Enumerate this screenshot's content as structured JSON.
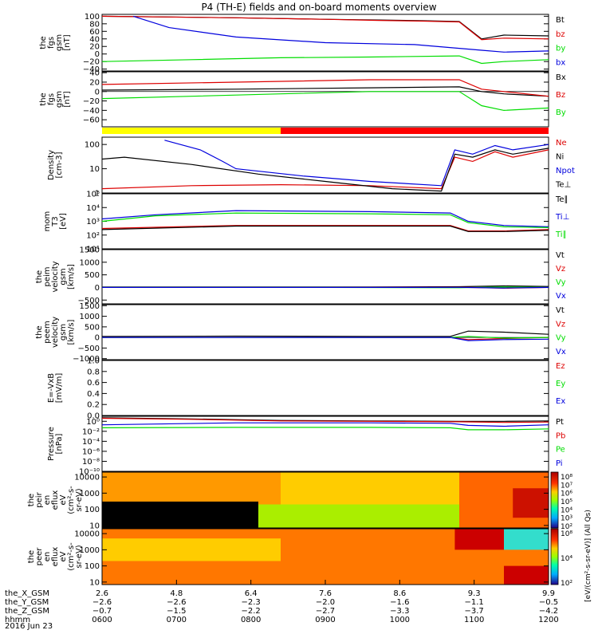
{
  "title": "P4 (TH-E) fields and on-board moments overview",
  "date_label": "2016 Jun 23",
  "colors": {
    "black": "#000000",
    "red": "#dd0000",
    "green": "#00dd00",
    "blue": "#0000dd",
    "yellow": "#ffff00",
    "bar_red": "#ff0000"
  },
  "chart_data": [
    {
      "type": "line",
      "id": "fgs-gsm-bt",
      "ylabel": [
        "the",
        "fgs",
        "gsm",
        "[nT]"
      ],
      "ylim": [
        -45,
        105
      ],
      "y_ticks": [
        100,
        80,
        60,
        40,
        20,
        0,
        -20,
        -40
      ],
      "y_tick_labels": [
        "100",
        "80",
        "60",
        "40",
        "20",
        "0",
        "−20",
        "−40"
      ],
      "series": [
        {
          "name": "Bt",
          "color": "#000000",
          "x": [
            0,
            0.3,
            0.5,
            0.62,
            0.72,
            0.8,
            0.85,
            0.9,
            1.0
          ],
          "y": [
            100,
            96,
            92,
            90,
            88,
            86,
            40,
            50,
            48
          ]
        },
        {
          "name": "bz",
          "color": "#dd0000",
          "x": [
            0,
            0.3,
            0.5,
            0.62,
            0.72,
            0.8,
            0.85,
            0.9,
            1.0
          ],
          "y": [
            100,
            96,
            92,
            89,
            87,
            85,
            38,
            42,
            40
          ]
        },
        {
          "name": "by",
          "color": "#00dd00",
          "x": [
            0,
            0.2,
            0.4,
            0.6,
            0.8,
            0.85,
            0.9,
            1.0
          ],
          "y": [
            -20,
            -15,
            -10,
            -8,
            -5,
            -25,
            -20,
            -15
          ]
        },
        {
          "name": "bx",
          "color": "#0000dd",
          "x": [
            0.07,
            0.15,
            0.3,
            0.5,
            0.7,
            0.85,
            0.9,
            1.0
          ],
          "y": [
            100,
            70,
            45,
            30,
            25,
            10,
            5,
            8
          ]
        }
      ]
    },
    {
      "type": "line",
      "id": "fgs-gsm-bxyz",
      "ylabel": [
        "the",
        "fgs",
        "gsm",
        "[nT]"
      ],
      "ylim": [
        -75,
        42
      ],
      "y_ticks": [
        40,
        20,
        0,
        -20,
        -40,
        -60
      ],
      "y_tick_labels": [
        "40",
        "20",
        "0",
        "−20",
        "−40",
        "−60"
      ],
      "series": [
        {
          "name": "Bx",
          "color": "#000000",
          "x": [
            0,
            0.3,
            0.6,
            0.8,
            0.85,
            0.9,
            1.0
          ],
          "y": [
            3,
            5,
            8,
            10,
            0,
            -5,
            -10
          ]
        },
        {
          "name": "Bz",
          "color": "#dd0000",
          "x": [
            0,
            0.3,
            0.6,
            0.8,
            0.85,
            0.9,
            1.0
          ],
          "y": [
            15,
            20,
            25,
            25,
            5,
            0,
            -10
          ]
        },
        {
          "name": "By",
          "color": "#00dd00",
          "x": [
            0,
            0.2,
            0.4,
            0.6,
            0.8,
            0.85,
            0.9,
            1.0
          ],
          "y": [
            -15,
            -10,
            -5,
            0,
            0,
            -30,
            -40,
            -35
          ]
        }
      ]
    },
    {
      "type": "bar",
      "id": "region-bar",
      "segments": [
        {
          "x0": 0,
          "x1": 0.4,
          "color": "#ffff00"
        },
        {
          "x0": 0.4,
          "x1": 1.0,
          "color": "#ff0000"
        }
      ]
    },
    {
      "type": "line",
      "id": "density",
      "yscale": "log",
      "ylabel": [
        "Density",
        "[cm-3]"
      ],
      "ylim": [
        1,
        200
      ],
      "y_ticks": [
        100,
        10,
        1
      ],
      "y_tick_labels": [
        "100",
        "10",
        "1"
      ],
      "series": [
        {
          "name": "Ne",
          "color": "#dd0000",
          "x": [
            0,
            0.2,
            0.4,
            0.6,
            0.76,
            0.79,
            0.83,
            0.88,
            0.92,
            1.0
          ],
          "y": [
            1.5,
            2,
            2.2,
            2,
            1.5,
            30,
            20,
            50,
            30,
            60
          ]
        },
        {
          "name": "Ni",
          "color": "#000000",
          "x": [
            0,
            0.05,
            0.2,
            0.35,
            0.5,
            0.65,
            0.76,
            0.79,
            0.83,
            0.88,
            0.92,
            1.0
          ],
          "y": [
            25,
            30,
            15,
            6,
            3,
            1.5,
            1.2,
            40,
            30,
            60,
            40,
            70
          ]
        },
        {
          "name": "Npot",
          "color": "#0000dd",
          "x": [
            0.14,
            0.22,
            0.27,
            0.3,
            0.45,
            0.6,
            0.76,
            0.79,
            0.83,
            0.88,
            0.92,
            1.0
          ],
          "y": [
            150,
            60,
            20,
            10,
            5,
            3,
            2,
            60,
            40,
            90,
            60,
            100
          ]
        }
      ]
    },
    {
      "type": "line",
      "id": "temperature",
      "yscale": "log",
      "ylabel": [
        "mom",
        "T3",
        "[eV]"
      ],
      "ylim": [
        10,
        100000
      ],
      "y_ticks": [
        100000,
        10000,
        1000,
        100,
        10
      ],
      "y_tick_labels": [
        "10⁵",
        "10⁴",
        "10³",
        "10²",
        "10¹"
      ],
      "series": [
        {
          "name": "Te⊥",
          "color": "#dd0000",
          "x": [
            0,
            0.3,
            0.6,
            0.78,
            0.82,
            0.9,
            1.0
          ],
          "y": [
            300,
            500,
            500,
            500,
            200,
            200,
            250
          ]
        },
        {
          "name": "Te∥",
          "color": "#000000",
          "x": [
            0,
            0.3,
            0.6,
            0.78,
            0.82,
            0.9,
            1.0
          ],
          "y": [
            250,
            450,
            450,
            450,
            180,
            180,
            220
          ]
        },
        {
          "name": "Ti⊥",
          "color": "#0000dd",
          "x": [
            0,
            0.12,
            0.3,
            0.6,
            0.78,
            0.82,
            0.9,
            1.0
          ],
          "y": [
            1500,
            3000,
            6000,
            5000,
            4000,
            1000,
            500,
            400
          ]
        },
        {
          "name": "Ti∥",
          "color": "#00dd00",
          "x": [
            0,
            0.12,
            0.3,
            0.6,
            0.78,
            0.82,
            0.9,
            1.0
          ],
          "y": [
            1000,
            2500,
            4000,
            3500,
            3000,
            800,
            400,
            350
          ]
        }
      ]
    },
    {
      "type": "line",
      "id": "peim-velocity",
      "ylabel": [
        "the",
        "peim",
        "velocity",
        "gsm",
        "[km/s]"
      ],
      "ylim": [
        -650,
        1500
      ],
      "y_ticks": [
        1500,
        1000,
        500,
        0,
        -500
      ],
      "y_tick_labels": [
        "1500",
        "1000",
        "500",
        "0",
        "−500"
      ],
      "series": [
        {
          "name": "Vt",
          "color": "#000000",
          "x": [
            0,
            0.3,
            0.6,
            0.8,
            0.9,
            1.0
          ],
          "y": [
            20,
            20,
            20,
            30,
            60,
            40
          ]
        },
        {
          "name": "Vz",
          "color": "#dd0000",
          "x": [
            0,
            0.5,
            0.8,
            0.9,
            1.0
          ],
          "y": [
            0,
            0,
            10,
            -30,
            0
          ]
        },
        {
          "name": "Vy",
          "color": "#00dd00",
          "x": [
            0,
            0.5,
            0.8,
            0.9,
            1.0
          ],
          "y": [
            0,
            0,
            -10,
            20,
            0
          ]
        },
        {
          "name": "Vx",
          "color": "#0000dd",
          "x": [
            0,
            0.5,
            0.8,
            0.9,
            1.0
          ],
          "y": [
            0,
            0,
            5,
            -20,
            0
          ]
        }
      ]
    },
    {
      "type": "line",
      "id": "peem-velocity",
      "ylabel": [
        "the",
        "peem",
        "velocity",
        "gsm",
        "[km/s]"
      ],
      "ylim": [
        -1050,
        1550
      ],
      "y_ticks": [
        1500,
        1000,
        500,
        0,
        -500,
        -1000
      ],
      "y_tick_labels": [
        "1500",
        "1000",
        "500",
        "0",
        "−500",
        "−1000"
      ],
      "series": [
        {
          "name": "Vt",
          "color": "#000000",
          "x": [
            0,
            0.3,
            0.6,
            0.78,
            0.82,
            0.9,
            1.0
          ],
          "y": [
            50,
            60,
            50,
            50,
            300,
            250,
            150
          ]
        },
        {
          "name": "Vz",
          "color": "#dd0000",
          "x": [
            0,
            0.5,
            0.78,
            0.82,
            0.9,
            1.0
          ],
          "y": [
            0,
            0,
            0,
            -100,
            -50,
            0
          ]
        },
        {
          "name": "Vy",
          "color": "#00dd00",
          "x": [
            0,
            0.5,
            0.78,
            0.82,
            0.9,
            1.0
          ],
          "y": [
            0,
            0,
            0,
            50,
            -30,
            0
          ]
        },
        {
          "name": "Vx",
          "color": "#0000dd",
          "x": [
            0,
            0.5,
            0.78,
            0.82,
            0.9,
            1.0
          ],
          "y": [
            0,
            0,
            0,
            -150,
            -100,
            -80
          ]
        }
      ]
    },
    {
      "type": "line",
      "id": "efield",
      "ylabel": [
        "E=-VxB",
        "[mV/m]"
      ],
      "ylim": [
        0,
        1
      ],
      "y_ticks": [
        1.0,
        0.8,
        0.6,
        0.4,
        0.2,
        0.0
      ],
      "y_tick_labels": [
        "1.0",
        "0.8",
        "0.6",
        "0.4",
        "0.2",
        "0.0"
      ],
      "series": [
        {
          "name": "Ez",
          "color": "#dd0000",
          "x": [],
          "y": []
        },
        {
          "name": "Ey",
          "color": "#00dd00",
          "x": [],
          "y": []
        },
        {
          "name": "Ex",
          "color": "#0000dd",
          "x": [],
          "y": []
        }
      ]
    },
    {
      "type": "line",
      "id": "pressure",
      "yscale": "log",
      "ylabel": [
        "Pressure",
        "[nPa]"
      ],
      "ylim": [
        1e-10,
        10
      ],
      "y_ticks": [
        1,
        0.01,
        0.0001,
        1e-06,
        1e-08,
        1e-10
      ],
      "y_tick_labels": [
        "10⁰",
        "10⁻²",
        "10⁻⁴",
        "10⁻⁶",
        "10⁻⁸",
        "10⁻¹⁰"
      ],
      "series": [
        {
          "name": "Pt",
          "color": "#000000",
          "x": [
            0,
            0.2,
            0.4,
            0.6,
            0.8,
            0.9,
            1.0
          ],
          "y": [
            5,
            3,
            1.5,
            1.2,
            1,
            1,
            1.2
          ]
        },
        {
          "name": "Pb",
          "color": "#dd0000",
          "x": [
            0,
            0.2,
            0.4,
            0.6,
            0.8,
            0.9,
            1.0
          ],
          "y": [
            4,
            2.5,
            1.2,
            1,
            0.8,
            0.6,
            0.7
          ]
        },
        {
          "name": "Pe",
          "color": "#00dd00",
          "x": [
            0,
            0.3,
            0.6,
            0.78,
            0.82,
            0.9,
            1.0
          ],
          "y": [
            0.05,
            0.06,
            0.06,
            0.05,
            0.02,
            0.02,
            0.03
          ]
        },
        {
          "name": "Pi",
          "color": "#0000dd",
          "x": [
            0,
            0.3,
            0.6,
            0.78,
            0.82,
            0.9,
            1.0
          ],
          "y": [
            0.2,
            0.5,
            0.5,
            0.4,
            0.15,
            0.1,
            0.2
          ]
        }
      ]
    },
    {
      "type": "heatmap",
      "id": "peir-eflux",
      "yscale": "log",
      "ylabel": [
        "the",
        "peir",
        "en",
        "eflux",
        "eV",
        "(cm²-s-",
        "sr-eV)"
      ],
      "ylim": [
        7,
        20000
      ],
      "y_ticks": [
        10000,
        1000,
        100,
        10
      ],
      "y_tick_labels": [
        "10000",
        "1000",
        "100",
        "10"
      ],
      "regions": [
        {
          "x0": 0,
          "x1": 0.4,
          "e0": 7,
          "e1": 20000,
          "color": "#ff9900"
        },
        {
          "x0": 0,
          "x1": 0.35,
          "e0": 7,
          "e1": 300,
          "color": "#000000"
        },
        {
          "x0": 0.35,
          "x1": 0.8,
          "e0": 7,
          "e1": 200,
          "color": "#aaee00"
        },
        {
          "x0": 0.4,
          "x1": 0.8,
          "e0": 200,
          "e1": 20000,
          "color": "#ffcc00"
        },
        {
          "x0": 0.8,
          "x1": 1.0,
          "e0": 7,
          "e1": 20000,
          "color": "#ff6600"
        },
        {
          "x0": 0.92,
          "x1": 1.0,
          "e0": 30,
          "e1": 2000,
          "color": "#cc1100"
        }
      ]
    },
    {
      "type": "heatmap",
      "id": "peer-eflux",
      "yscale": "log",
      "ylabel": [
        "the",
        "peer",
        "en",
        "eflux",
        "eV",
        "(cm²-s-",
        "sr-eV)"
      ],
      "ylim": [
        7,
        20000
      ],
      "y_ticks": [
        10000,
        1000,
        100,
        10
      ],
      "y_tick_labels": [
        "10000",
        "1000",
        "100",
        "10"
      ],
      "regions": [
        {
          "x0": 0,
          "x1": 1.0,
          "e0": 7,
          "e1": 20000,
          "color": "#ff7700"
        },
        {
          "x0": 0,
          "x1": 0.4,
          "e0": 200,
          "e1": 5000,
          "color": "#ffcc00"
        },
        {
          "x0": 0.79,
          "x1": 0.9,
          "e0": 1000,
          "e1": 20000,
          "color": "#cc0000"
        },
        {
          "x0": 0.9,
          "x1": 1.0,
          "e0": 1000,
          "e1": 20000,
          "color": "#33ddcc"
        },
        {
          "x0": 0.9,
          "x1": 1.0,
          "e0": 7,
          "e1": 100,
          "color": "#cc0000"
        }
      ]
    }
  ],
  "legends": [
    [
      "Bt",
      "bz",
      "by",
      "bx"
    ],
    [
      "Bx",
      "Bz",
      "By"
    ],
    [],
    [
      "Ne",
      "Ni",
      "Npot",
      "Te⊥"
    ],
    [
      "Te∥",
      "Ti⊥",
      "Ti∥"
    ],
    [
      "Vt",
      "Vz",
      "Vy",
      "Vx"
    ],
    [
      "Vt",
      "Vz",
      "Vy",
      "Vx"
    ],
    [
      "Ez",
      "Ey",
      "Ex"
    ],
    [
      "Pt",
      "Pb",
      "Pe",
      "Pi"
    ],
    [],
    []
  ],
  "colorbar": {
    "label": "[eV/(cm²-s-sr-eV)] (All Qs)",
    "ticks_top": [
      "10⁸",
      "10⁷",
      "10⁶",
      "10⁵",
      "10⁴",
      "10³",
      "10²"
    ],
    "ticks_bottom": [
      "10⁸",
      "10⁴",
      "10²"
    ]
  },
  "x_axis": {
    "rows": [
      {
        "label": "the_X_GSM",
        "values": [
          "2.6",
          "4.8",
          "6.4",
          "7.6",
          "8.6",
          "9.3",
          "9.9"
        ]
      },
      {
        "label": "the_Y_GSM",
        "values": [
          "−2.6",
          "−2.6",
          "−2.3",
          "−2.0",
          "−1.6",
          "−1.1",
          "−0.5"
        ]
      },
      {
        "label": "the_Z_GSM",
        "values": [
          "−0.7",
          "−1.5",
          "−2.2",
          "−2.7",
          "−3.3",
          "−3.7",
          "−4.2"
        ]
      },
      {
        "label": "hhmm",
        "values": [
          "0600",
          "0700",
          "0800",
          "0900",
          "1000",
          "1100",
          "1200"
        ]
      }
    ]
  }
}
